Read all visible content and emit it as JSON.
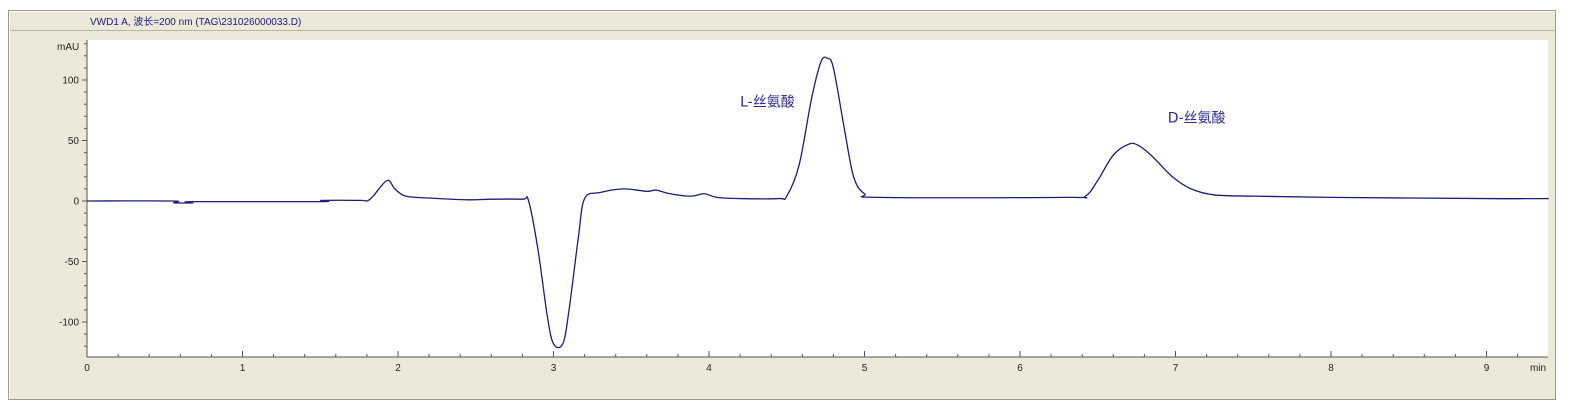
{
  "chart_data": {
    "type": "line",
    "title": "VWD1 A, 波长=200 nm (TAG\\231026000033.D)",
    "xlabel": "min",
    "ylabel": "mAU",
    "xlim": [
      0,
      9.4
    ],
    "ylim": [
      -129,
      133
    ],
    "x_ticks": [
      0,
      1,
      2,
      3,
      4,
      5,
      6,
      7,
      8,
      9
    ],
    "y_ticks": [
      -100,
      -50,
      0,
      50,
      100
    ],
    "x_tick_labels": [
      "0",
      "1",
      "2",
      "3",
      "4",
      "5",
      "6",
      "7",
      "8",
      "9"
    ],
    "y_tick_labels": [
      "-100",
      "-50",
      "0",
      "50",
      "100"
    ],
    "grid": false,
    "line_color": "#1c1c7a",
    "annotations": [
      {
        "text": "L-丝氨酸",
        "x": 4.2,
        "y": 78
      },
      {
        "text": "D-丝氨酸",
        "x": 6.95,
        "y": 65
      }
    ],
    "series": [
      {
        "x": [
          0,
          0.55,
          0.56,
          0.68,
          0.69,
          1.5,
          1.51,
          1.76,
          1.8,
          1.84,
          1.93,
          1.98,
          2.05,
          2.2,
          2.45,
          2.6,
          2.8,
          2.84,
          2.9,
          2.96,
          3.0,
          3.06,
          3.1,
          3.16,
          3.2,
          3.3,
          3.45,
          3.6,
          3.66,
          3.75,
          3.88,
          3.97,
          4.05,
          4.2,
          4.45,
          4.5,
          4.58,
          4.66,
          4.72,
          4.76,
          4.8,
          4.87,
          4.93,
          5.0,
          5.1,
          6.3,
          6.42,
          6.5,
          6.6,
          6.7,
          6.76,
          6.85,
          6.98,
          7.1,
          7.25,
          7.5,
          8.0,
          9.0,
          9.4
        ],
        "y": [
          0,
          0,
          -1.5,
          -1.5,
          -0.5,
          -0.5,
          0.5,
          0.5,
          0,
          4,
          17,
          10,
          4,
          2.5,
          1,
          1.5,
          1.5,
          0,
          -40,
          -95,
          -118,
          -118,
          -90,
          -30,
          2,
          7,
          10,
          8,
          9,
          6,
          4,
          6,
          3,
          2,
          2,
          4,
          30,
          85,
          115,
          118,
          110,
          60,
          20,
          6,
          3,
          3,
          4,
          17,
          38,
          47,
          46,
          37,
          20,
          10,
          5,
          4,
          3,
          2,
          2
        ]
      }
    ]
  }
}
